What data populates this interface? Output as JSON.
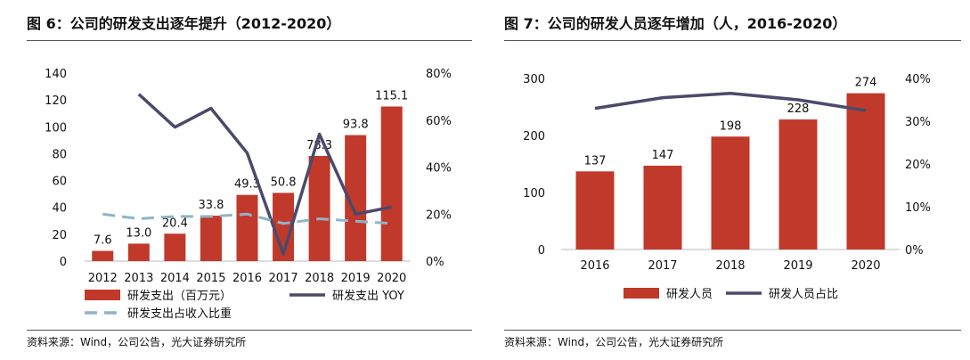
{
  "figures": [
    {
      "title": "图 6：公司的研发支出逐年提升（2012-2020）",
      "source": "资料来源：Wind，公司公告，光大证券研究所"
    },
    {
      "title": "图 7：公司的研发人员逐年增加（人，2016-2020）",
      "source": "资料来源：Wind，公司公告，光大证券研究所"
    }
  ],
  "chart_data": [
    {
      "type": "bar",
      "categories": [
        "2012",
        "2013",
        "2014",
        "2015",
        "2016",
        "2017",
        "2018",
        "2019",
        "2020"
      ],
      "series": [
        {
          "name": "研发支出（百万元）",
          "type": "bar",
          "axis": "left",
          "color": "#C0392B",
          "values": [
            7.6,
            13.0,
            20.4,
            33.8,
            49.3,
            50.8,
            78.3,
            93.8,
            115.1
          ],
          "labels": [
            "7.6",
            "13.0",
            "20.4",
            "33.8",
            "49.3",
            "50.8",
            "78.3",
            "93.8",
            "115.1"
          ]
        },
        {
          "name": "研发支出 YOY",
          "type": "line",
          "axis": "right",
          "color": "#4B4A6B",
          "values": [
            null,
            0.71,
            0.57,
            0.65,
            0.46,
            0.03,
            0.54,
            0.2,
            0.23
          ]
        },
        {
          "name": "研发支出占收入比重",
          "type": "line",
          "axis": "right",
          "dashed": true,
          "color": "#8EB4C8",
          "values": [
            0.2,
            0.18,
            0.19,
            0.19,
            0.2,
            0.16,
            0.18,
            0.17,
            0.16
          ]
        }
      ],
      "y_left": {
        "min": 0,
        "max": 140,
        "ticks": [
          "0",
          "20",
          "40",
          "60",
          "80",
          "100",
          "120",
          "140"
        ]
      },
      "y_right": {
        "min": 0,
        "max": 0.8,
        "ticks": [
          "0%",
          "20%",
          "40%",
          "60%",
          "80%"
        ]
      },
      "grid": false,
      "legend_position": "bottom"
    },
    {
      "type": "bar",
      "categories": [
        "2016",
        "2017",
        "2018",
        "2019",
        "2020"
      ],
      "series": [
        {
          "name": "研发人员",
          "type": "bar",
          "axis": "left",
          "color": "#C0392B",
          "values": [
            137,
            147,
            198,
            228,
            274
          ],
          "labels": [
            "137",
            "147",
            "198",
            "228",
            "274"
          ]
        },
        {
          "name": "研发人员占比",
          "type": "line",
          "axis": "right",
          "color": "#4B4A6B",
          "values": [
            0.33,
            0.355,
            0.365,
            0.35,
            0.325
          ]
        }
      ],
      "y_left": {
        "min": 0,
        "max": 300,
        "ticks": [
          "0",
          "100",
          "200",
          "300"
        ]
      },
      "y_right": {
        "min": 0,
        "max": 0.4,
        "ticks": [
          "0%",
          "10%",
          "20%",
          "30%",
          "40%"
        ]
      },
      "grid": false,
      "legend_position": "bottom"
    }
  ]
}
